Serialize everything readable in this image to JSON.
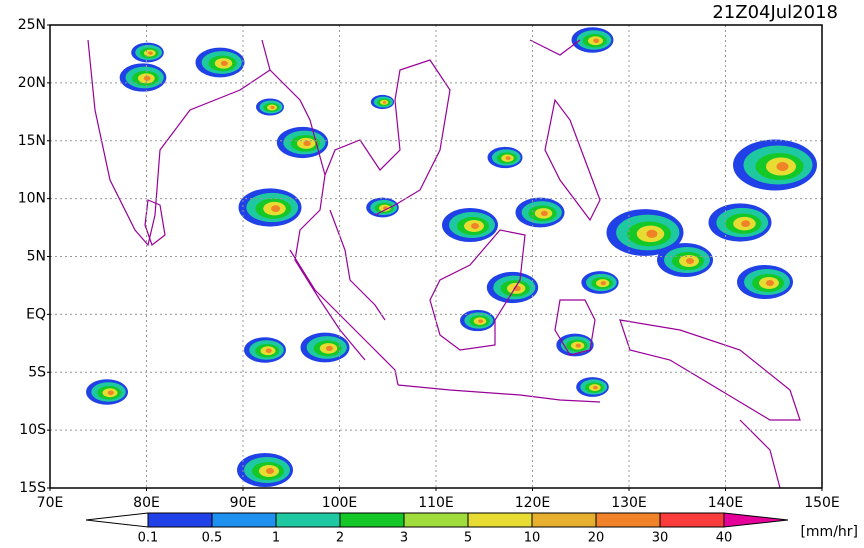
{
  "title": "21Z04Jul2018",
  "lat_labels": [
    "25N",
    "20N",
    "15N",
    "10N",
    "5N",
    "EQ",
    "5S",
    "10S",
    "15S"
  ],
  "lon_labels": [
    "70E",
    "80E",
    "90E",
    "100E",
    "110E",
    "120E",
    "130E",
    "140E",
    "150E"
  ],
  "colorbar": {
    "levels": [
      0.1,
      0.5,
      1,
      2,
      3,
      5,
      10,
      20,
      30,
      40
    ],
    "colors": [
      "#2040e8",
      "#1e90f0",
      "#1ec8a0",
      "#14c828",
      "#a0dc3c",
      "#e6dc32",
      "#e6af2d",
      "#f08228",
      "#fa3c3c",
      "#e6009a"
    ],
    "unit": "[mm/hr]"
  }
}
